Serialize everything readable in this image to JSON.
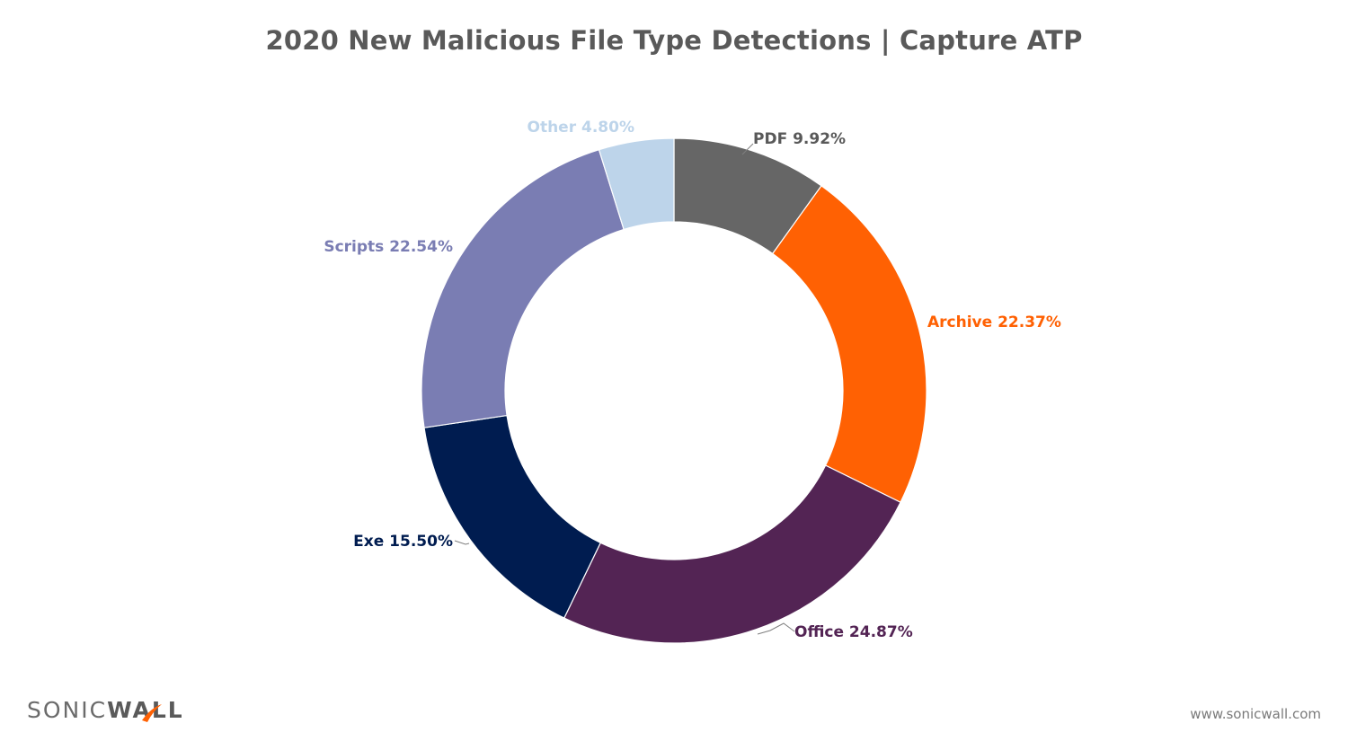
{
  "chart_data": {
    "type": "pie",
    "title": "2020 New Malicious File Type Detections | Capture ATP",
    "donut": true,
    "slices": [
      {
        "label": "PDF",
        "value": 9.92,
        "display": "PDF 9.92%",
        "color": "#666666",
        "label_color": "#595959"
      },
      {
        "label": "Archive",
        "value": 22.37,
        "display": "Archive 22.37%",
        "color": "#ff6103",
        "label_color": "#ff6103"
      },
      {
        "label": "Office",
        "value": 24.87,
        "display": "Office 24.87%",
        "color": "#532454",
        "label_color": "#532454"
      },
      {
        "label": "Exe",
        "value": 15.5,
        "display": "Exe 15.50%",
        "color": "#001c50",
        "label_color": "#001c50"
      },
      {
        "label": "Scripts",
        "value": 22.54,
        "display": "Scripts 22.54%",
        "color": "#7a7db3",
        "label_color": "#7a7db3"
      },
      {
        "label": "Other",
        "value": 4.8,
        "display": "Other 4.80%",
        "color": "#bdd4ea",
        "label_color": "#bdd4ea"
      }
    ]
  },
  "footer": {
    "logo_light": "SONIC",
    "logo_bold": "WALL",
    "website": "www.sonicwall.com"
  }
}
